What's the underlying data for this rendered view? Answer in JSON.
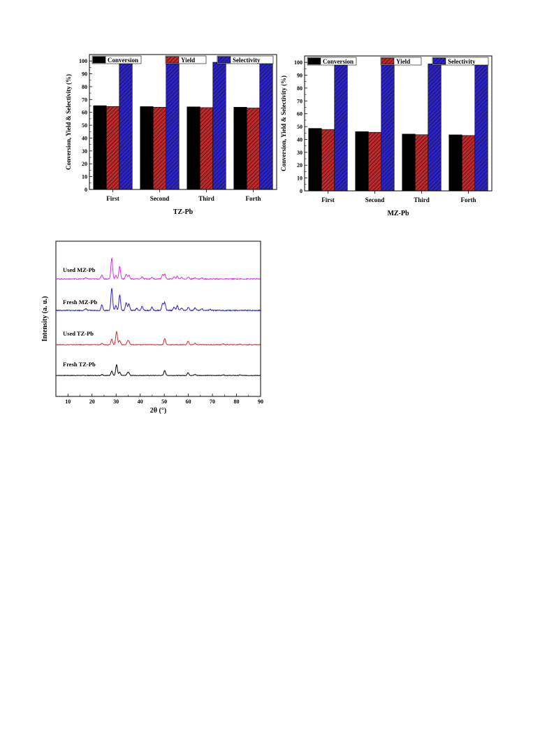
{
  "chart_data": [
    {
      "type": "bar",
      "xlabel": "TZ-Pb",
      "ylabel": "Conversion, Yield & Selectivity (%)",
      "categories": [
        "First",
        "Second",
        "Third",
        "Forth"
      ],
      "ylim": [
        0,
        105
      ],
      "yticks": [
        0,
        10,
        20,
        30,
        40,
        50,
        60,
        70,
        80,
        90,
        100
      ],
      "grid": false,
      "legend": "top",
      "series": [
        {
          "name": "Conversion",
          "values": [
            65.2,
            64.5,
            64.3,
            64.0
          ],
          "color": "#000000",
          "pattern": "solid"
        },
        {
          "name": "Yield",
          "values": [
            64.6,
            64.0,
            63.7,
            63.4
          ],
          "color": "#c0282a",
          "pattern": "hatch"
        },
        {
          "name": "Selectivity",
          "values": [
            99.1,
            99.2,
            99.0,
            99.1
          ],
          "color": "#2b22c8",
          "pattern": "hatch"
        }
      ]
    },
    {
      "type": "bar",
      "xlabel": "MZ-Pb",
      "ylabel": "Conversion, Yield & Selectivity (%)",
      "categories": [
        "First",
        "Second",
        "Third",
        "Forth"
      ],
      "ylim": [
        0,
        105
      ],
      "yticks": [
        0,
        10,
        20,
        30,
        40,
        50,
        60,
        70,
        80,
        90,
        100
      ],
      "grid": false,
      "legend": "top",
      "series": [
        {
          "name": "Conversion",
          "values": [
            48.6,
            46.1,
            44.2,
            43.6
          ],
          "color": "#000000",
          "pattern": "solid"
        },
        {
          "name": "Yield",
          "values": [
            47.8,
            45.6,
            43.7,
            43.1
          ],
          "color": "#c0282a",
          "pattern": "hatch"
        },
        {
          "name": "Selectivity",
          "values": [
            98.3,
            98.9,
            98.8,
            98.8
          ],
          "color": "#2b22c8",
          "pattern": "hatch"
        }
      ]
    },
    {
      "type": "line",
      "xlabel": "2θ (°)",
      "ylabel": "Intensity (a. u.)",
      "xlim": [
        5,
        90
      ],
      "xticks": [
        10,
        20,
        30,
        40,
        50,
        60,
        70,
        80,
        90
      ],
      "grid": false,
      "series": [
        {
          "name": "Fresh TZ-Pb",
          "color": "#000000",
          "peaks": [
            [
              24.2,
              0.08
            ],
            [
              28.2,
              0.35
            ],
            [
              30.2,
              0.85
            ],
            [
              31.5,
              0.25
            ],
            [
              34.8,
              0.2
            ],
            [
              35.3,
              0.15
            ],
            [
              50.2,
              0.4
            ],
            [
              59.9,
              0.22
            ],
            [
              62.8,
              0.08
            ],
            [
              74.5,
              0.05
            ],
            [
              81.5,
              0.04
            ]
          ]
        },
        {
          "name": "Used TZ-Pb",
          "color": "#cc2b2e",
          "peaks": [
            [
              24.2,
              0.08
            ],
            [
              28.2,
              0.4
            ],
            [
              30.2,
              0.95
            ],
            [
              31.5,
              0.3
            ],
            [
              34.8,
              0.22
            ],
            [
              35.3,
              0.18
            ],
            [
              50.2,
              0.45
            ],
            [
              59.9,
              0.25
            ],
            [
              62.8,
              0.1
            ],
            [
              74.5,
              0.06
            ],
            [
              81.5,
              0.05
            ]
          ]
        },
        {
          "name": "Fresh MZ-Pb",
          "color": "#2b22c8",
          "peaks": [
            [
              17.4,
              0.08
            ],
            [
              24.1,
              0.25
            ],
            [
              28.2,
              1.0
            ],
            [
              29.9,
              0.2
            ],
            [
              31.5,
              0.7
            ],
            [
              34.2,
              0.35
            ],
            [
              35.3,
              0.3
            ],
            [
              38.6,
              0.1
            ],
            [
              40.8,
              0.18
            ],
            [
              44.9,
              0.14
            ],
            [
              49.3,
              0.3
            ],
            [
              50.2,
              0.35
            ],
            [
              54.1,
              0.15
            ],
            [
              55.4,
              0.2
            ],
            [
              57.2,
              0.12
            ],
            [
              60.0,
              0.15
            ],
            [
              62.8,
              0.12
            ],
            [
              65.6,
              0.08
            ],
            [
              69.0,
              0.05
            ]
          ]
        },
        {
          "name": "Used MZ-Pb",
          "color": "#d633e0",
          "peaks": [
            [
              17.4,
              0.06
            ],
            [
              24.1,
              0.2
            ],
            [
              28.2,
              1.0
            ],
            [
              29.9,
              0.15
            ],
            [
              31.5,
              0.6
            ],
            [
              34.2,
              0.22
            ],
            [
              35.3,
              0.18
            ],
            [
              40.8,
              0.1
            ],
            [
              44.9,
              0.08
            ],
            [
              49.3,
              0.2
            ],
            [
              50.2,
              0.22
            ],
            [
              54.1,
              0.1
            ],
            [
              55.4,
              0.13
            ],
            [
              57.2,
              0.08
            ],
            [
              60.0,
              0.1
            ],
            [
              62.8,
              0.07
            ],
            [
              65.6,
              0.05
            ]
          ]
        }
      ]
    }
  ]
}
